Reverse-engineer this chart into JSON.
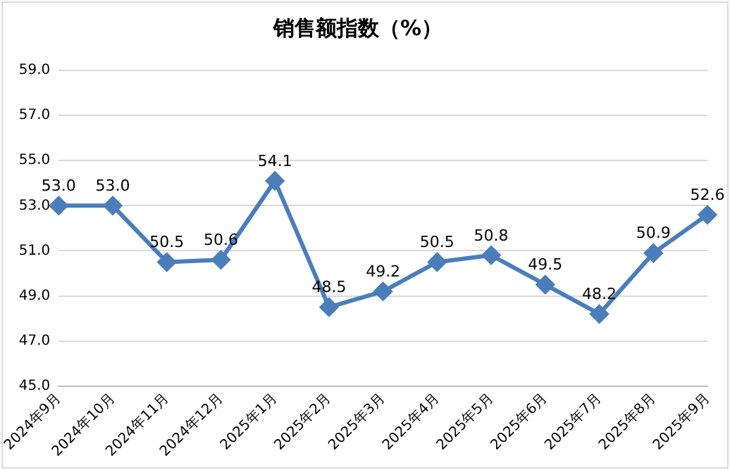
{
  "chart_data": {
    "type": "line",
    "title": "销售额指数（%）",
    "categories": [
      "2024年9月",
      "2024年10月",
      "2024年11月",
      "2024年12月",
      "2025年1月",
      "2025年2月",
      "2025年3月",
      "2025年4月",
      "2025年5月",
      "2025年6月",
      "2025年7月",
      "2025年8月",
      "2025年9月"
    ],
    "series": [
      {
        "color": "#4a7ebb",
        "values": [
          53.0,
          53.0,
          50.5,
          50.6,
          54.1,
          48.5,
          49.2,
          50.5,
          50.8,
          49.5,
          48.2,
          50.9,
          52.6
        ],
        "value_labels": [
          "53.0",
          "53.0",
          "50.5",
          "50.6",
          "54.1",
          "48.5",
          "49.2",
          "50.5",
          "50.8",
          "49.5",
          "48.2",
          "50.9",
          "52.6"
        ]
      }
    ],
    "ylim": [
      45,
      59
    ],
    "yticks": [
      {
        "value": 45,
        "label": "45.0"
      },
      {
        "value": 47,
        "label": "47.0"
      },
      {
        "value": 49,
        "label": "49.0"
      },
      {
        "value": 51,
        "label": "51.0"
      },
      {
        "value": 53,
        "label": "53.0"
      },
      {
        "value": 55,
        "label": "55.0"
      },
      {
        "value": 57,
        "label": "57.0"
      },
      {
        "value": 59,
        "label": "59.0"
      }
    ],
    "grid": "y",
    "legend": false,
    "marker": "diamond",
    "line_style": "solid"
  }
}
